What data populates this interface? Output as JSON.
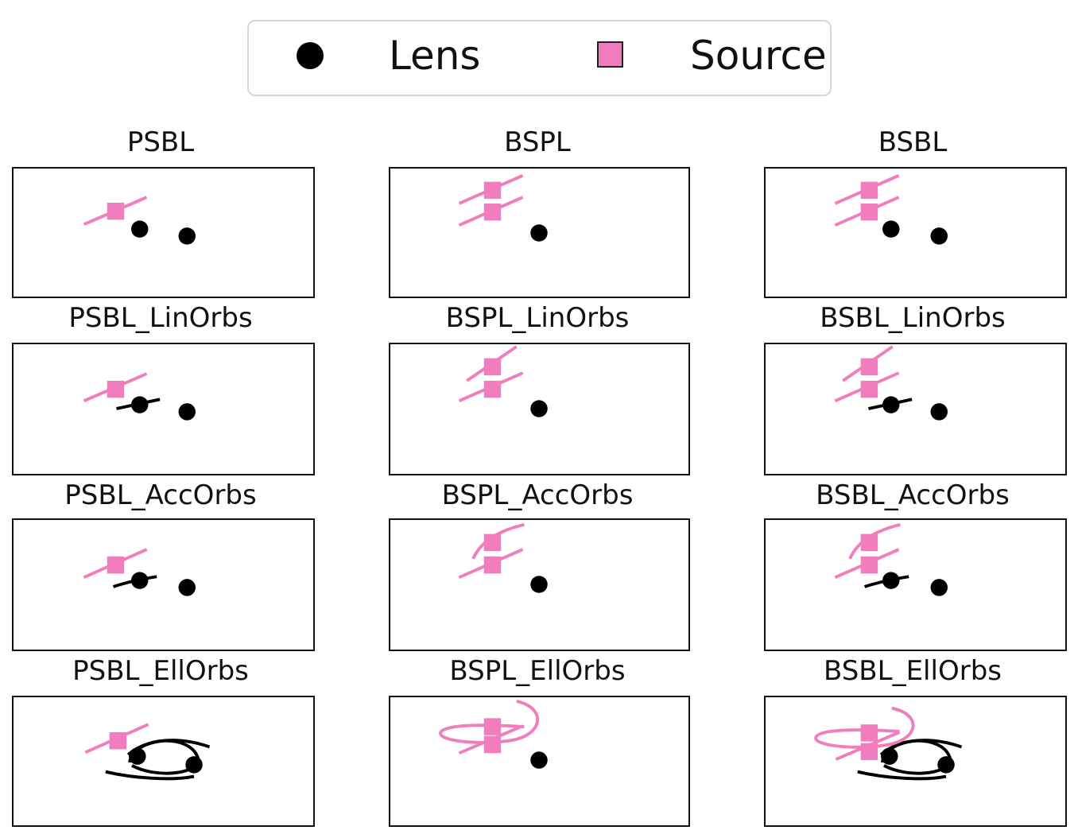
{
  "legend": {
    "items": [
      {
        "label": "Lens",
        "marker": "black-circle"
      },
      {
        "label": "Source",
        "marker": "pink-square"
      }
    ]
  },
  "colors": {
    "lens": "#000000",
    "source": "#f17dbf",
    "frame": "#111111"
  },
  "panels": [
    {
      "title": "PSBL"
    },
    {
      "title": "BSPL"
    },
    {
      "title": "BSBL"
    },
    {
      "title": "PSBL_LinOrbs"
    },
    {
      "title": "BSPL_LinOrbs"
    },
    {
      "title": "BSBL_LinOrbs"
    },
    {
      "title": "PSBL_AccOrbs"
    },
    {
      "title": "BSPL_AccOrbs"
    },
    {
      "title": "BSBL_AccOrbs"
    },
    {
      "title": "PSBL_EllOrbs"
    },
    {
      "title": "BSPL_EllOrbs"
    },
    {
      "title": "BSBL_EllOrbs"
    }
  ]
}
